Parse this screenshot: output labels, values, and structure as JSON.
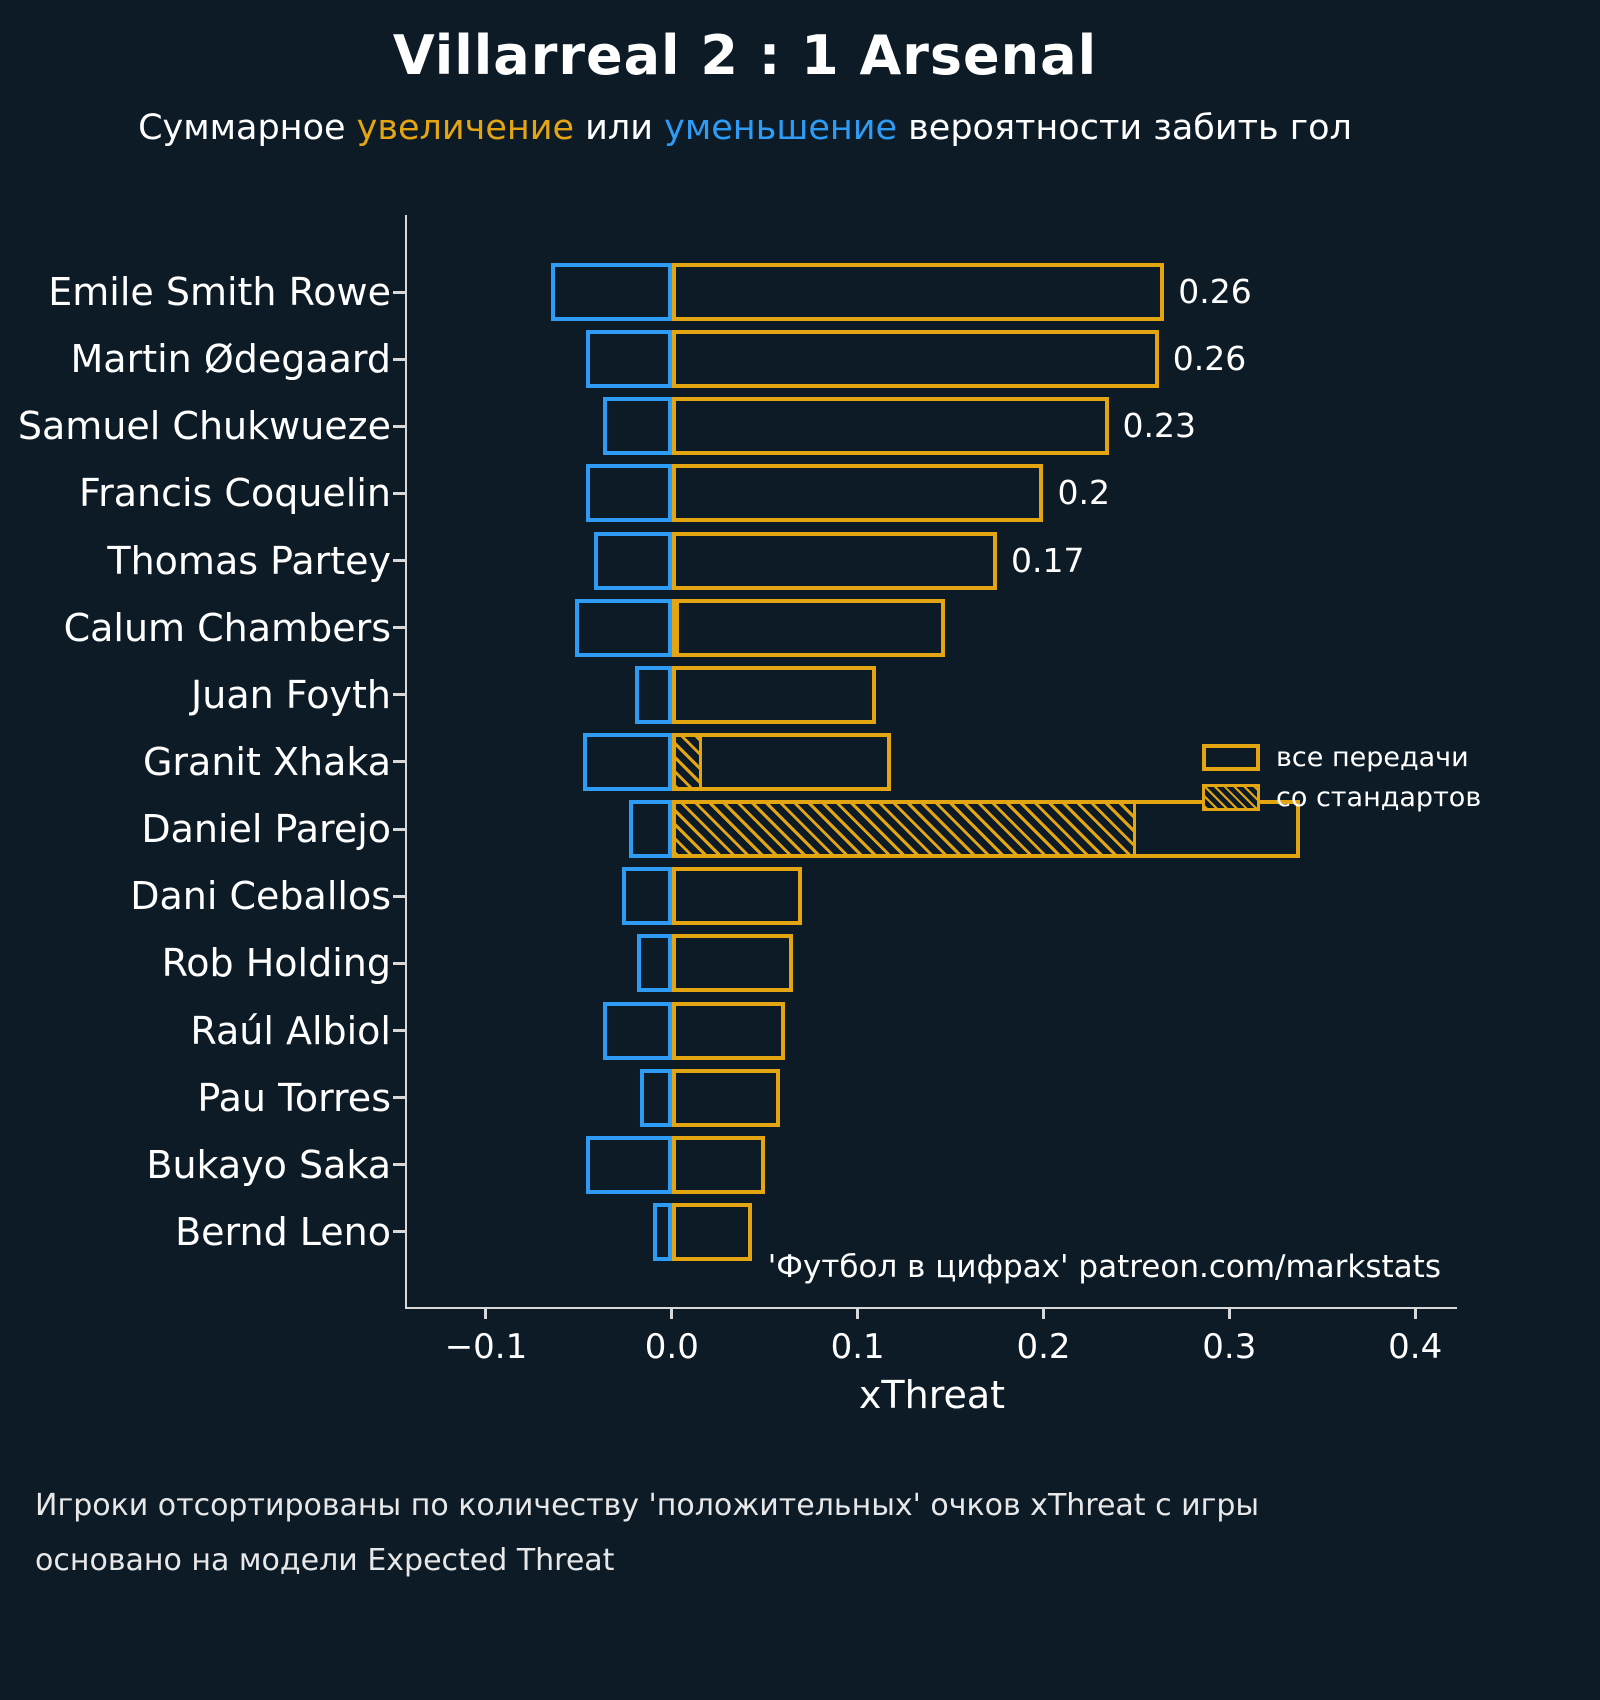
{
  "title": "Villarreal 2 : 1 Arsenal",
  "subtitle": {
    "prefix": "Суммарное ",
    "increase": "увеличение",
    "middle": " или ",
    "decrease": "уменьшение",
    "suffix": " вероятности забить гол"
  },
  "colors": {
    "background": "#0D1B26",
    "increase": "#E3A612",
    "decrease": "#2E9BF5",
    "text": "#FFFFFF"
  },
  "legend": {
    "all_passes": "все передачи",
    "set_pieces": "со стандартов"
  },
  "watermark": "'Футбол в цифрах' patreon.com/markstats",
  "footer": {
    "line1": "Игроки отсортированы по количеству 'положительных' очков xThreat с игры",
    "line2": "основано на модели Expected Threat"
  },
  "chart_data": {
    "type": "bar",
    "orientation": "horizontal",
    "title": "Villarreal 2 : 1 Arsenal",
    "xlabel": "xThreat",
    "xlim": [
      -0.1425,
      0.4225
    ],
    "xticks": [
      -0.1,
      0.0,
      0.1,
      0.2,
      0.3,
      0.4
    ],
    "xtick_labels": [
      "−0.1",
      "0.0",
      "0.1",
      "0.2",
      "0.3",
      "0.4"
    ],
    "grid": false,
    "legend_position": "middle-right",
    "players": [
      {
        "name": "Emile Smith Rowe",
        "positive": 0.265,
        "negative": -0.065,
        "set_piece": 0,
        "label": "0.26"
      },
      {
        "name": "Martin Ødegaard",
        "positive": 0.262,
        "negative": -0.046,
        "set_piece": 0,
        "label": "0.26"
      },
      {
        "name": "Samuel Chukwueze",
        "positive": 0.235,
        "negative": -0.037,
        "set_piece": 0,
        "label": "0.23"
      },
      {
        "name": "Francis Coquelin",
        "positive": 0.2,
        "negative": -0.046,
        "set_piece": 0,
        "label": "0.2"
      },
      {
        "name": "Thomas Partey",
        "positive": 0.175,
        "negative": -0.042,
        "set_piece": 0,
        "label": "0.17"
      },
      {
        "name": "Calum Chambers",
        "positive": 0.147,
        "negative": -0.052,
        "set_piece": 0.004,
        "label": ""
      },
      {
        "name": "Juan Foyth",
        "positive": 0.11,
        "negative": -0.02,
        "set_piece": 0,
        "label": ""
      },
      {
        "name": "Granit Xhaka",
        "positive": 0.118,
        "negative": -0.048,
        "set_piece": 0.016,
        "label": ""
      },
      {
        "name": "Daniel Parejo",
        "positive": 0.338,
        "negative": -0.023,
        "set_piece": 0.25,
        "label": ""
      },
      {
        "name": "Dani Ceballos",
        "positive": 0.07,
        "negative": -0.027,
        "set_piece": 0,
        "label": ""
      },
      {
        "name": "Rob Holding",
        "positive": 0.065,
        "negative": -0.019,
        "set_piece": 0,
        "label": ""
      },
      {
        "name": "Raúl Albiol",
        "positive": 0.061,
        "negative": -0.037,
        "set_piece": 0,
        "label": ""
      },
      {
        "name": "Pau Torres",
        "positive": 0.058,
        "negative": -0.017,
        "set_piece": 0,
        "label": ""
      },
      {
        "name": "Bukayo Saka",
        "positive": 0.05,
        "negative": -0.046,
        "set_piece": 0,
        "label": ""
      },
      {
        "name": "Bernd Leno",
        "positive": 0.043,
        "negative": -0.01,
        "set_piece": 0,
        "label": ""
      }
    ]
  }
}
